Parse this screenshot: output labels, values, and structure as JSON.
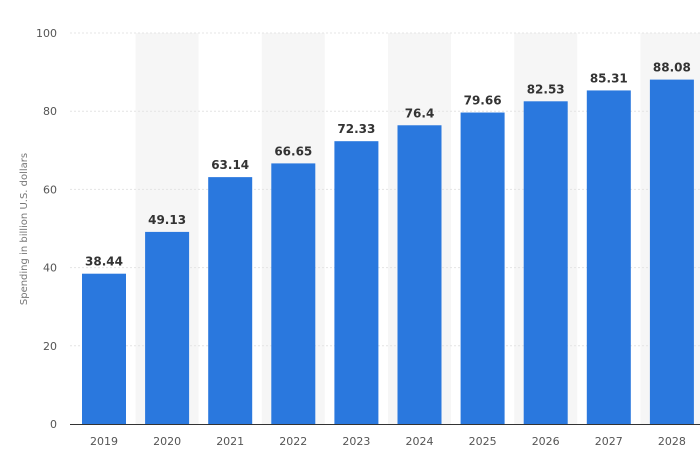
{
  "chart_data": {
    "type": "bar",
    "title": "",
    "xlabel": "",
    "ylabel": "Spending in billion U.S. dollars",
    "categories": [
      "2019",
      "2020",
      "2021",
      "2022",
      "2023",
      "2024",
      "2025",
      "2026",
      "2027",
      "2028"
    ],
    "values": [
      38.44,
      49.13,
      63.14,
      66.65,
      72.33,
      76.4,
      79.66,
      82.53,
      85.31,
      88.08
    ],
    "value_labels": [
      "38.44",
      "49.13",
      "63.14",
      "66.65",
      "72.33",
      "76.4",
      "79.66",
      "82.53",
      "85.31",
      "88.08"
    ],
    "ylim": [
      0,
      100
    ],
    "yticks": [
      "0",
      "20",
      "40",
      "60",
      "80",
      "100"
    ],
    "grid": true,
    "bar_color": "#2a78de",
    "band_color": "#f6f6f6",
    "grid_color": "#e4e4e4",
    "axis_color": "#333333"
  }
}
